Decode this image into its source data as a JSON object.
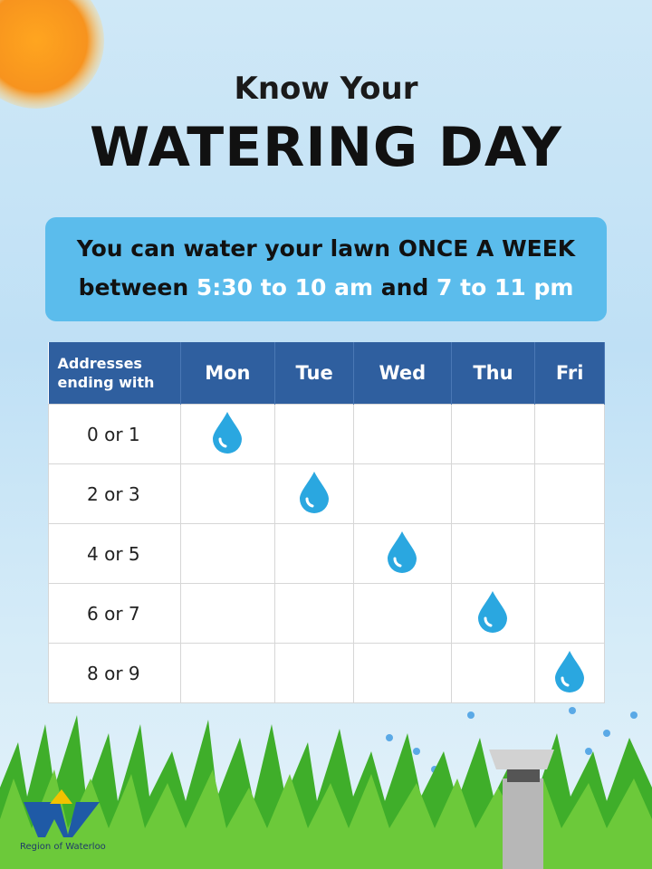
{
  "header": {
    "kicker": "Know Your",
    "title": "WATERING DAY"
  },
  "banner": {
    "line1": "You can water your lawn ONCE A WEEK",
    "between": "between",
    "morning": "5:30 to 10 am",
    "and": "and",
    "evening": "7 to 11 pm"
  },
  "table": {
    "header": [
      "Addresses ending with",
      "Mon",
      "Tue",
      "Wed",
      "Thu",
      "Fri"
    ],
    "rows": [
      "0 or 1",
      "2 or 3",
      "4 or 5",
      "6 or 7",
      "8 or 9"
    ]
  },
  "logo": {
    "text": "Region of Waterloo"
  }
}
